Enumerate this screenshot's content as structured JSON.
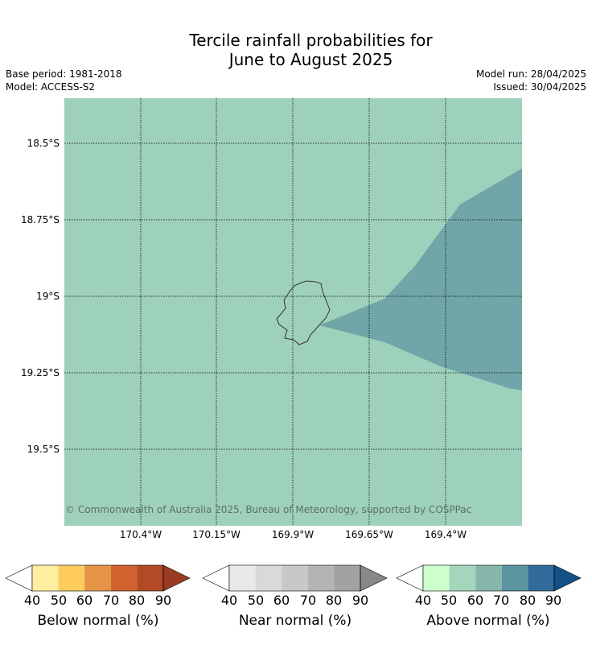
{
  "title": {
    "line1": "Tercile rainfall probabilities for",
    "line2": "June to August 2025"
  },
  "meta": {
    "base_period": "Base period: 1981-2018",
    "model": "Model: ACCESS-S2",
    "model_run": "Model run: 28/04/2025",
    "issued": "Issued: 30/04/2025"
  },
  "map": {
    "ocean_color": "#9ed1bb",
    "anomaly_color": "#70a6a8",
    "island_outline_color": "#333333",
    "lat_labels": [
      "18.5°S",
      "18.75°S",
      "19°S",
      "19.25°S",
      "19.5°S"
    ],
    "lon_labels": [
      "170.4°W",
      "170.15°W",
      "169.9°W",
      "169.65°W",
      "169.4°W"
    ],
    "copyright": "© Commonwealth of Australia 2025, Bureau of Meteorology, supported by COSPPac"
  },
  "colorbars": [
    {
      "title": "Below normal (%)",
      "ticks": [
        "40",
        "50",
        "60",
        "70",
        "80",
        "90"
      ],
      "colors": [
        "#ffffff",
        "#ffeda0",
        "#fecc5c",
        "#e39445",
        "#d1622f",
        "#b24a26",
        "#9b3a22"
      ]
    },
    {
      "title": "Near normal (%)",
      "ticks": [
        "40",
        "50",
        "60",
        "70",
        "80",
        "90"
      ],
      "colors": [
        "#ffffff",
        "#e8e8e8",
        "#d9d9d9",
        "#c8c8c8",
        "#b4b4b4",
        "#a2a2a2",
        "#888888"
      ]
    },
    {
      "title": "Above normal (%)",
      "ticks": [
        "40",
        "50",
        "60",
        "70",
        "80",
        "90"
      ],
      "colors": [
        "#ffffff",
        "#ccffcc",
        "#a3d6bb",
        "#86b5a9",
        "#5a95a0",
        "#336a9c",
        "#155088"
      ]
    }
  ]
}
